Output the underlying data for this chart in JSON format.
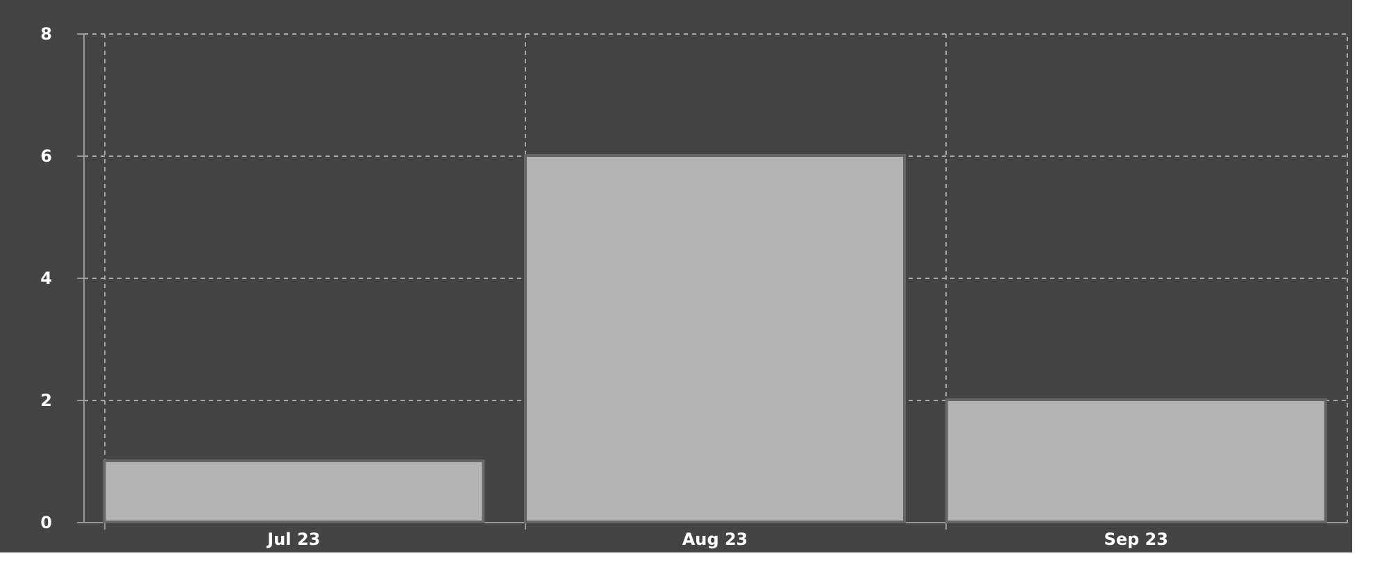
{
  "chart_data": {
    "type": "bar",
    "categories": [
      "Jul 23",
      "Aug 23",
      "Sep 23"
    ],
    "values": [
      1,
      6,
      2
    ],
    "color": "#b3b3b3",
    "ylim": [
      0,
      8
    ],
    "yticks": [
      0,
      2,
      4,
      6,
      8
    ],
    "grid": true
  }
}
